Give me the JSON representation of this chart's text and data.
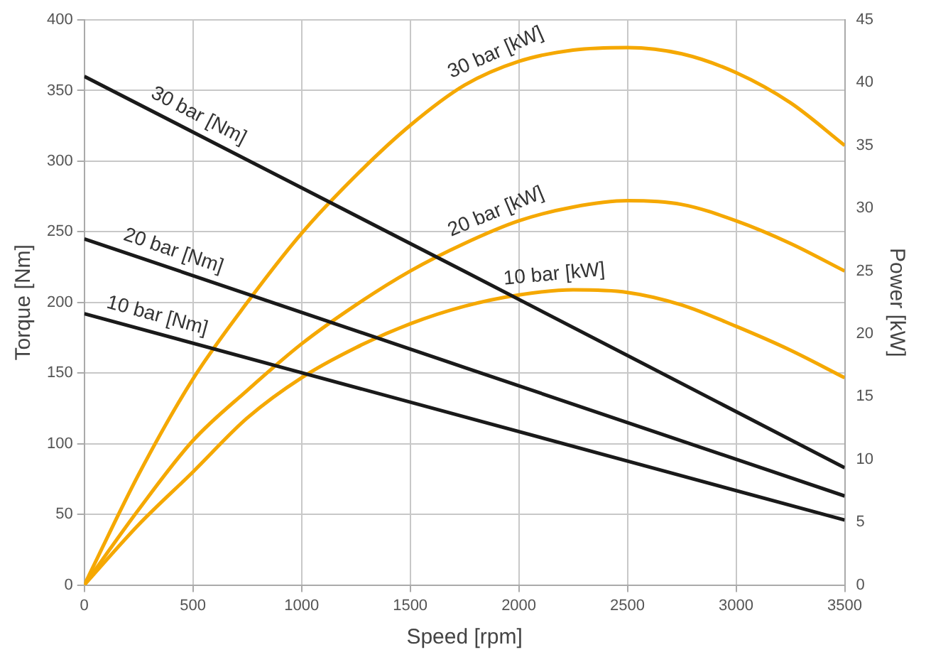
{
  "chart_data": {
    "type": "line",
    "xlabel": "Speed [rpm]",
    "ylabel": "Torque [Nm]",
    "y2label": "Power [kW]",
    "xlim": [
      0,
      3500
    ],
    "xticks": [
      0,
      500,
      1000,
      1500,
      2000,
      2500,
      3000,
      3500
    ],
    "ylim": [
      0,
      400
    ],
    "yticks": [
      0,
      50,
      100,
      150,
      200,
      250,
      300,
      350,
      400
    ],
    "y2lim": [
      0,
      45
    ],
    "y2ticks": [
      0,
      5,
      10,
      15,
      20,
      25,
      30,
      35,
      40,
      45
    ],
    "grid": true,
    "legend": false,
    "marker": "none",
    "line_style": "solid",
    "series": [
      {
        "name": "30 bar [Nm]",
        "color": "#1a1a1a",
        "x": [
          0,
          1750,
          3500
        ],
        "values": [
          360,
          222,
          83
        ]
      },
      {
        "name": "20 bar [Nm]",
        "color": "#1a1a1a",
        "x": [
          0,
          1750,
          3500
        ],
        "values": [
          245,
          154,
          63
        ]
      },
      {
        "name": "10 bar [Nm]",
        "color": "#1a1a1a",
        "x": [
          0,
          1750,
          3500
        ],
        "values": [
          192,
          119,
          46
        ]
      },
      {
        "name": "30 bar [kW]",
        "color": "#f5a800",
        "axis": "y2",
        "x": [
          0,
          250,
          500,
          750,
          1000,
          1250,
          1500,
          1750,
          2000,
          2250,
          2500,
          2750,
          3000,
          3250,
          3500
        ],
        "values": [
          0,
          8.8,
          16.4,
          22.5,
          28,
          32.6,
          36.6,
          39.8,
          41.7,
          42.6,
          42.8,
          42.3,
          40.8,
          38.4,
          35
        ]
      },
      {
        "name": "20 bar [kW]",
        "color": "#f5a800",
        "axis": "y2",
        "x": [
          0,
          250,
          500,
          750,
          1000,
          1250,
          1500,
          1750,
          2000,
          2250,
          2500,
          2750,
          3000,
          3250,
          3500
        ],
        "values": [
          0,
          6,
          11.5,
          15.5,
          19.2,
          22.3,
          25,
          27.2,
          29,
          30.1,
          30.6,
          30.3,
          29,
          27.2,
          25
        ]
      },
      {
        "name": "10 bar [kW]",
        "color": "#f5a800",
        "axis": "y2",
        "x": [
          0,
          250,
          500,
          750,
          1000,
          1250,
          1500,
          1750,
          2000,
          2250,
          2500,
          2750,
          3000,
          3250,
          3500
        ],
        "values": [
          0,
          4.8,
          9,
          13.3,
          16.5,
          18.9,
          20.8,
          22.2,
          23.1,
          23.5,
          23.3,
          22.3,
          20.6,
          18.7,
          16.5
        ]
      }
    ]
  }
}
